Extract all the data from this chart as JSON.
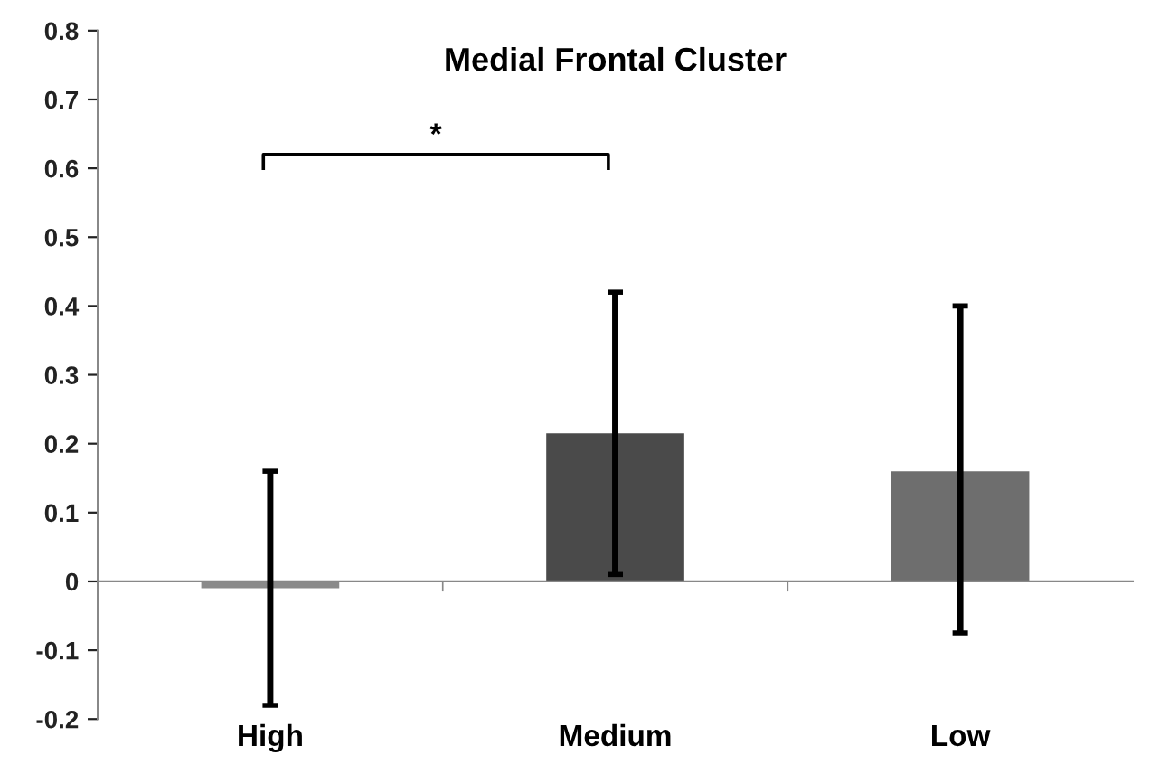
{
  "chart_data": {
    "type": "bar",
    "title": "Medial Frontal Cluster",
    "categories": [
      "High",
      "Medium",
      "Low"
    ],
    "values": [
      -0.01,
      0.215,
      0.16
    ],
    "errors": [
      [
        -0.18,
        0.16
      ],
      [
        0.01,
        0.42
      ],
      [
        -0.075,
        0.4
      ]
    ],
    "colors": [
      "#8a8a8a",
      "#4a4a4a",
      "#6e6e6e"
    ],
    "ylim": [
      -0.2,
      0.8
    ],
    "yticks": [
      -0.2,
      -0.1,
      0,
      0.1,
      0.2,
      0.3,
      0.4,
      0.5,
      0.6,
      0.7,
      0.8
    ],
    "annotations": [
      "*"
    ],
    "legend": false
  }
}
